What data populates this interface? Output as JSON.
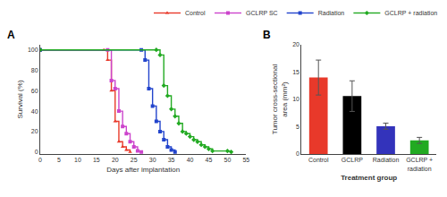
{
  "chart_data": [
    {
      "type": "step",
      "xlabel": "Days after implantation",
      "ylabel": "Survival (%)",
      "xlim": [
        0,
        55
      ],
      "ylim": [
        -2,
        105
      ],
      "xticks": [
        0,
        5,
        10,
        15,
        20,
        25,
        30,
        35,
        40,
        45,
        50,
        55
      ],
      "yticks": [
        0,
        20,
        40,
        60,
        80,
        100
      ],
      "grid": false,
      "legend": "upper right",
      "annotations": [
        {
          "text": "A"
        }
      ],
      "series": [
        {
          "name": "Control",
          "color": "#e8392a",
          "marker": "triangle-up",
          "x": [
            0,
            17,
            18,
            19,
            20,
            21,
            22,
            23,
            24
          ],
          "values": [
            100,
            100,
            90,
            60,
            30,
            10,
            5,
            2,
            0
          ]
        },
        {
          "name": "GCLRP SC",
          "color": "#cc44cc",
          "marker": "square",
          "x": [
            0,
            18,
            19,
            20,
            21,
            22,
            23,
            24,
            25,
            26,
            27
          ],
          "values": [
            100,
            100,
            70,
            62,
            40,
            25,
            18,
            10,
            5,
            1,
            0
          ]
        },
        {
          "name": "Radiation",
          "color": "#2244cc",
          "marker": "square",
          "x": [
            0,
            27,
            28,
            29,
            30,
            31,
            32,
            33,
            34,
            35,
            36
          ],
          "values": [
            100,
            100,
            90,
            62,
            45,
            30,
            20,
            12,
            5,
            2,
            0
          ]
        },
        {
          "name": "GCLRP + radiation",
          "color": "#22aa22",
          "marker": "diamond",
          "x": [
            0,
            31,
            32,
            33,
            34,
            35,
            36,
            37,
            38,
            39,
            40,
            41,
            42,
            43,
            44,
            45,
            46,
            50,
            51
          ],
          "values": [
            100,
            100,
            95,
            65,
            55,
            42,
            35,
            28,
            20,
            18,
            15,
            12,
            10,
            7,
            5,
            3,
            1,
            1,
            0
          ]
        }
      ]
    },
    {
      "type": "bar",
      "xlabel": "Treatment group",
      "ylabel": "Tumor cross-sectional\narea (mm²)",
      "ylim": [
        0,
        20
      ],
      "yticks": [
        0,
        5,
        10,
        15,
        20
      ],
      "grid": false,
      "annotations": [
        {
          "text": "B"
        }
      ],
      "categories": [
        "Control",
        "GCLRP",
        "Radiation",
        "GCLRP +\nradiation"
      ],
      "values": [
        14.0,
        10.6,
        5.1,
        2.5
      ],
      "errors_up": [
        3.2,
        2.8,
        0.55,
        0.55
      ],
      "errors_down": [
        3.2,
        2.8,
        0.55,
        0.55
      ],
      "colors": [
        "#e8392a",
        "#000000",
        "#3333bb",
        "#22aa22"
      ]
    }
  ]
}
